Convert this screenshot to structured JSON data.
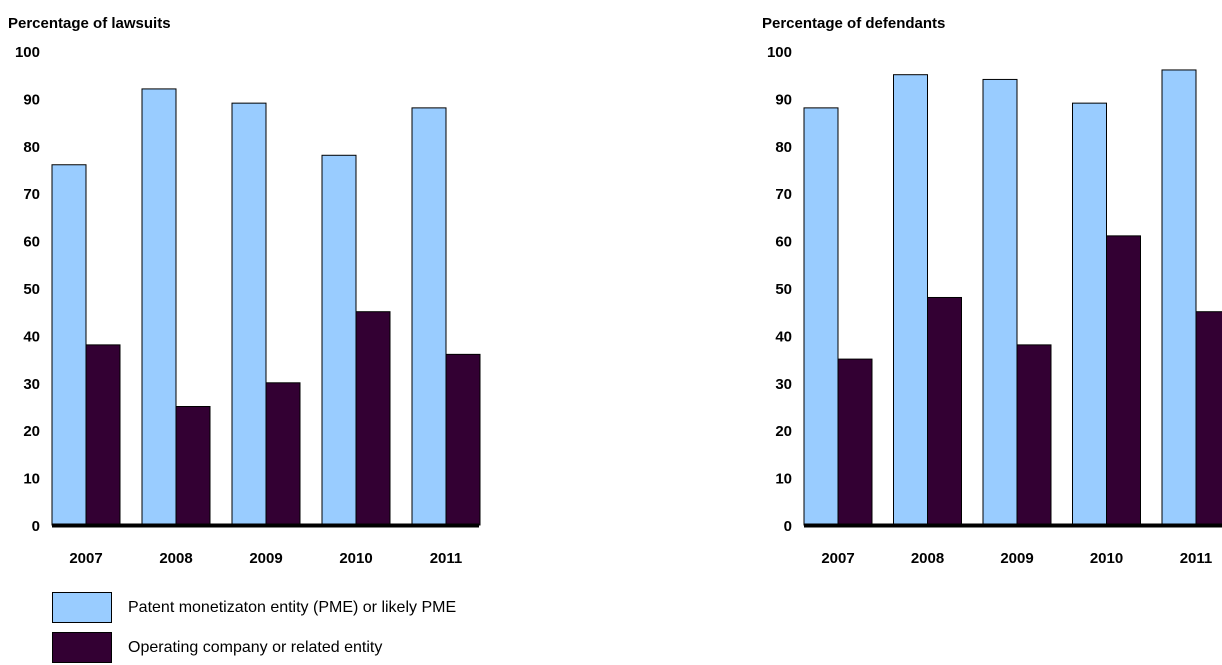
{
  "legend": [
    {
      "label": "Patent monetizaton entity (PME) or likely PME",
      "color": "#99ccff"
    },
    {
      "label": "Operating company or related entity",
      "color": "#330033"
    }
  ],
  "chart_data": [
    {
      "type": "bar",
      "title": "Percentage of lawsuits",
      "categories": [
        "2007",
        "2008",
        "2009",
        "2010",
        "2011"
      ],
      "y_ticks": [
        "0",
        "10",
        "20",
        "30",
        "40",
        "50",
        "60",
        "70",
        "80",
        "90",
        "100"
      ],
      "ylim": [
        0,
        100
      ],
      "grid": false,
      "series": [
        {
          "name": "Patent monetizaton entity (PME) or likely PME",
          "color": "#99ccff",
          "values": [
            76,
            92,
            89,
            78,
            88
          ]
        },
        {
          "name": "Operating company or related entity",
          "color": "#330033",
          "values": [
            38,
            25,
            30,
            45,
            36
          ]
        }
      ]
    },
    {
      "type": "bar",
      "title": "Percentage of defendants",
      "categories": [
        "2007",
        "2008",
        "2009",
        "2010",
        "2011"
      ],
      "y_ticks": [
        "0",
        "10",
        "20",
        "30",
        "40",
        "50",
        "60",
        "70",
        "80",
        "90",
        "100"
      ],
      "ylim": [
        0,
        100
      ],
      "grid": false,
      "series": [
        {
          "name": "Patent monetizaton entity (PME) or likely PME",
          "color": "#99ccff",
          "values": [
            88,
            95,
            94,
            89,
            96
          ]
        },
        {
          "name": "Operating company or related entity",
          "color": "#330033",
          "values": [
            35,
            48,
            38,
            61,
            45
          ]
        }
      ]
    }
  ]
}
